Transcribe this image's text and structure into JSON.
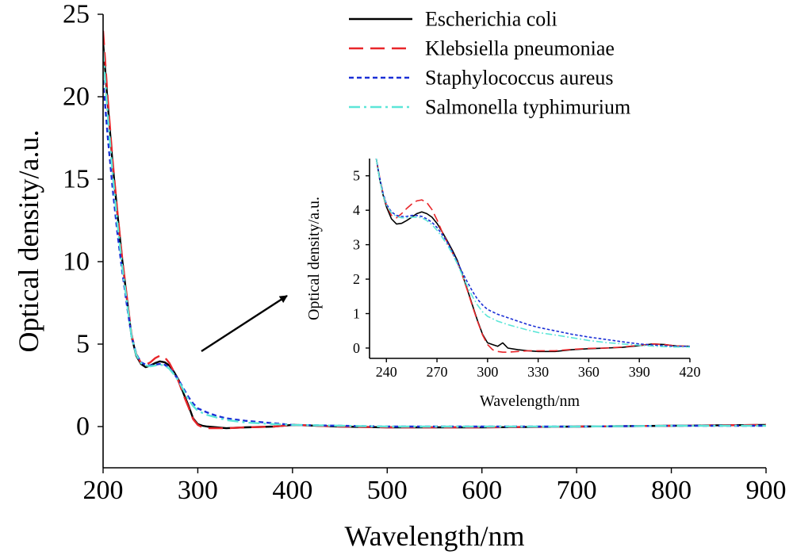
{
  "chart_data": [
    {
      "type": "line",
      "title": "",
      "xlabel": "Wavelength/nm",
      "ylabel": "Optical density/a.u.",
      "xlim": [
        200,
        900
      ],
      "ylim": [
        -2.5,
        25
      ],
      "xticks": [
        200,
        300,
        400,
        500,
        600,
        700,
        800,
        900
      ],
      "yticks": [
        0,
        5,
        10,
        15,
        20,
        25
      ],
      "grid": false,
      "legend_position": "top-right",
      "series": [
        {
          "name": "Escherichia coli",
          "color": "#000000",
          "dash": "solid",
          "x": [
            200,
            205,
            210,
            215,
            220,
            225,
            230,
            235,
            240,
            245,
            250,
            255,
            260,
            265,
            270,
            275,
            280,
            285,
            290,
            295,
            300,
            305,
            310,
            320,
            330,
            350,
            380,
            400,
            450,
            500,
            600,
            700,
            800,
            900
          ],
          "y": [
            23.3,
            19.5,
            16.0,
            13.0,
            10.2,
            7.8,
            5.5,
            4.3,
            3.8,
            3.6,
            3.7,
            3.85,
            3.95,
            3.9,
            3.7,
            3.3,
            2.8,
            2.0,
            1.3,
            0.5,
            0.15,
            0.05,
            0.0,
            -0.05,
            -0.1,
            -0.05,
            0.0,
            0.1,
            0.0,
            -0.05,
            -0.05,
            0.0,
            0.05,
            0.1
          ]
        },
        {
          "name": "Klebsiella pneumoniae",
          "color": "#e8262a",
          "dash": "long-dash",
          "x": [
            200,
            205,
            210,
            215,
            220,
            225,
            230,
            235,
            240,
            245,
            250,
            255,
            260,
            265,
            270,
            275,
            280,
            285,
            290,
            295,
            300,
            305,
            310,
            320,
            330,
            350,
            380,
            400,
            450,
            500,
            600,
            700,
            800,
            900
          ],
          "y": [
            24.0,
            19.8,
            16.2,
            13.1,
            10.3,
            7.9,
            5.6,
            4.4,
            3.85,
            3.75,
            3.9,
            4.15,
            4.3,
            4.2,
            3.85,
            3.3,
            2.7,
            1.9,
            1.2,
            0.45,
            0.1,
            -0.05,
            -0.1,
            -0.1,
            -0.1,
            -0.05,
            0.0,
            0.1,
            0.0,
            -0.05,
            -0.05,
            0.0,
            0.05,
            0.1
          ]
        },
        {
          "name": "Staphylococcus aureus",
          "color": "#1a2fd6",
          "dash": "short-dash",
          "x": [
            200,
            205,
            210,
            215,
            220,
            225,
            230,
            235,
            240,
            245,
            250,
            255,
            260,
            265,
            270,
            275,
            280,
            285,
            290,
            295,
            300,
            310,
            320,
            330,
            350,
            380,
            400,
            450,
            500,
            600,
            700,
            800,
            900
          ],
          "y": [
            21.0,
            17.5,
            14.5,
            11.8,
            9.5,
            7.4,
            5.5,
            4.4,
            3.9,
            3.75,
            3.7,
            3.75,
            3.8,
            3.75,
            3.55,
            3.2,
            2.8,
            2.3,
            1.8,
            1.4,
            1.1,
            0.85,
            0.65,
            0.5,
            0.35,
            0.2,
            0.1,
            0.05,
            0.0,
            0.0,
            0.0,
            0.05,
            0.05
          ]
        },
        {
          "name": "Salmonella typhimurium",
          "color": "#5ce6d8",
          "dash": "dash-dot",
          "x": [
            200,
            205,
            210,
            215,
            220,
            225,
            230,
            235,
            240,
            245,
            250,
            255,
            260,
            265,
            270,
            275,
            280,
            285,
            290,
            295,
            300,
            310,
            320,
            330,
            350,
            380,
            400,
            450,
            500,
            600,
            700,
            800,
            900
          ],
          "y": [
            22.8,
            18.8,
            15.4,
            12.4,
            9.8,
            7.6,
            5.5,
            4.35,
            3.85,
            3.7,
            3.65,
            3.7,
            3.75,
            3.7,
            3.5,
            3.15,
            2.75,
            2.2,
            1.65,
            1.25,
            0.95,
            0.7,
            0.55,
            0.4,
            0.25,
            0.15,
            0.1,
            0.05,
            0.0,
            0.0,
            0.0,
            0.05,
            0.05
          ]
        }
      ]
    },
    {
      "type": "line",
      "title": "",
      "xlabel": "Wavelength/nm",
      "ylabel": "Optical density/a.u.",
      "xlim": [
        230,
        420
      ],
      "ylim": [
        -0.3,
        5.5
      ],
      "xticks": [
        240,
        270,
        300,
        330,
        360,
        390,
        420
      ],
      "yticks": [
        0,
        1,
        2,
        3,
        4,
        5
      ],
      "grid": false,
      "series": [
        {
          "name": "Escherichia coli",
          "color": "#000000",
          "dash": "solid",
          "x": [
            234,
            236,
            238,
            240,
            243,
            246,
            249,
            252,
            255,
            258,
            261,
            264,
            267,
            270,
            273,
            276,
            279,
            282,
            285,
            288,
            291,
            294,
            297,
            300,
            303,
            306,
            309,
            312,
            318,
            324,
            330,
            340,
            350,
            360,
            370,
            380,
            390,
            398,
            405,
            412,
            420
          ],
          "y": [
            5.5,
            4.9,
            4.45,
            4.1,
            3.75,
            3.6,
            3.62,
            3.7,
            3.8,
            3.9,
            3.95,
            3.9,
            3.8,
            3.62,
            3.38,
            3.12,
            2.85,
            2.55,
            2.15,
            1.7,
            1.25,
            0.8,
            0.4,
            0.15,
            0.1,
            0.05,
            0.15,
            0.0,
            -0.05,
            -0.08,
            -0.1,
            -0.1,
            -0.05,
            -0.02,
            0.0,
            0.02,
            0.07,
            0.12,
            0.1,
            0.06,
            0.05
          ]
        },
        {
          "name": "Klebsiella pneumoniae",
          "color": "#e8262a",
          "dash": "long-dash",
          "x": [
            234,
            236,
            238,
            240,
            243,
            246,
            249,
            252,
            255,
            258,
            261,
            264,
            267,
            270,
            273,
            276,
            279,
            282,
            285,
            288,
            291,
            294,
            297,
            300,
            303,
            306,
            309,
            312,
            318,
            324,
            330,
            340,
            350,
            360,
            370,
            380,
            390,
            398,
            405,
            412,
            420
          ],
          "y": [
            5.5,
            4.95,
            4.5,
            4.15,
            3.85,
            3.78,
            3.9,
            4.05,
            4.18,
            4.27,
            4.3,
            4.22,
            4.02,
            3.72,
            3.38,
            3.08,
            2.78,
            2.5,
            2.12,
            1.68,
            1.22,
            0.78,
            0.38,
            0.1,
            -0.05,
            -0.1,
            -0.12,
            -0.12,
            -0.1,
            -0.08,
            -0.08,
            -0.08,
            -0.04,
            -0.01,
            0.0,
            0.03,
            0.08,
            0.12,
            0.1,
            0.06,
            0.05
          ]
        },
        {
          "name": "Staphylococcus aureus",
          "color": "#1a2fd6",
          "dash": "short-dash",
          "x": [
            234,
            236,
            238,
            240,
            243,
            246,
            249,
            252,
            255,
            258,
            261,
            264,
            267,
            270,
            273,
            276,
            279,
            282,
            285,
            288,
            291,
            294,
            297,
            300,
            306,
            312,
            318,
            324,
            330,
            340,
            350,
            360,
            370,
            380,
            390,
            400,
            410,
            420
          ],
          "y": [
            5.5,
            4.95,
            4.5,
            4.18,
            3.95,
            3.85,
            3.82,
            3.82,
            3.85,
            3.85,
            3.82,
            3.75,
            3.65,
            3.5,
            3.3,
            3.08,
            2.8,
            2.5,
            2.2,
            1.92,
            1.65,
            1.42,
            1.25,
            1.12,
            0.98,
            0.88,
            0.78,
            0.68,
            0.6,
            0.5,
            0.4,
            0.32,
            0.25,
            0.18,
            0.12,
            0.08,
            0.05,
            0.05
          ]
        },
        {
          "name": "Salmonella typhimurium",
          "color": "#5ce6d8",
          "dash": "dash-dot",
          "x": [
            234,
            236,
            238,
            240,
            243,
            246,
            249,
            252,
            255,
            258,
            261,
            264,
            267,
            270,
            273,
            276,
            279,
            282,
            285,
            288,
            291,
            294,
            297,
            300,
            306,
            312,
            318,
            324,
            330,
            340,
            350,
            360,
            370,
            380,
            390,
            400,
            410,
            420
          ],
          "y": [
            5.5,
            4.9,
            4.45,
            4.15,
            3.92,
            3.82,
            3.78,
            3.78,
            3.8,
            3.8,
            3.78,
            3.7,
            3.58,
            3.42,
            3.22,
            3.0,
            2.75,
            2.45,
            2.12,
            1.8,
            1.5,
            1.25,
            1.05,
            0.92,
            0.78,
            0.68,
            0.6,
            0.52,
            0.45,
            0.38,
            0.3,
            0.22,
            0.16,
            0.12,
            0.08,
            0.05,
            0.03,
            0.03
          ]
        }
      ]
    }
  ]
}
